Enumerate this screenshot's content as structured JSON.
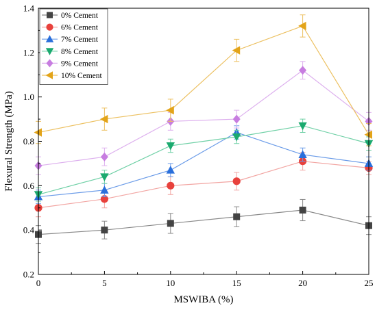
{
  "chart_data": {
    "type": "line",
    "xlabel": "MSWIBA (%)",
    "ylabel": "Flexural Strength (MPa)",
    "xlim": [
      0,
      25
    ],
    "ylim": [
      0.2,
      1.4
    ],
    "x_ticks": [
      "0",
      "5",
      "10",
      "15",
      "20",
      "25"
    ],
    "y_ticks": [
      "0.2",
      "0.4",
      "0.6",
      "0.8",
      "1.0",
      "1.2",
      "1.4"
    ],
    "grid": false,
    "legend_position": "top-left",
    "x": [
      0,
      5,
      10,
      15,
      20,
      25
    ],
    "series": [
      {
        "name": "0% Cement",
        "marker": "square",
        "color": "#444444",
        "line_color": "#888888",
        "values": [
          0.38,
          0.4,
          0.43,
          0.46,
          0.49,
          0.42
        ],
        "errors": [
          0.04,
          0.04,
          0.045,
          0.045,
          0.048,
          0.04
        ]
      },
      {
        "name": "6% Cement",
        "marker": "circle",
        "color": "#E8413C",
        "line_color": "#F2A5A2",
        "values": [
          0.5,
          0.54,
          0.6,
          0.62,
          0.71,
          0.68
        ],
        "errors": [
          0.04,
          0.04,
          0.04,
          0.04,
          0.04,
          0.03
        ]
      },
      {
        "name": "7% Cement",
        "marker": "triangle-up",
        "color": "#2A6FDB",
        "line_color": "#6A9BE8",
        "values": [
          0.55,
          0.58,
          0.67,
          0.84,
          0.74,
          0.7
        ],
        "errors": [
          0.03,
          0.03,
          0.03,
          0.03,
          0.03,
          0.03
        ]
      },
      {
        "name": "8% Cement",
        "marker": "triangle-down",
        "color": "#1BAA6F",
        "line_color": "#6FD0A6",
        "values": [
          0.56,
          0.64,
          0.78,
          0.82,
          0.87,
          0.79
        ],
        "errors": [
          0.03,
          0.03,
          0.03,
          0.03,
          0.03,
          0.03
        ]
      },
      {
        "name": "9% Cement",
        "marker": "diamond",
        "color": "#C77DE0",
        "line_color": "#DDB0EE",
        "values": [
          0.69,
          0.73,
          0.89,
          0.9,
          1.12,
          0.89
        ],
        "errors": [
          0.04,
          0.04,
          0.04,
          0.04,
          0.04,
          0.04
        ]
      },
      {
        "name": "10% Cement",
        "marker": "triangle-left",
        "color": "#E3A419",
        "line_color": "#ECC060",
        "values": [
          0.84,
          0.9,
          0.94,
          1.21,
          1.32,
          0.83
        ],
        "errors": [
          0.05,
          0.05,
          0.05,
          0.05,
          0.05,
          0.05
        ]
      }
    ]
  }
}
